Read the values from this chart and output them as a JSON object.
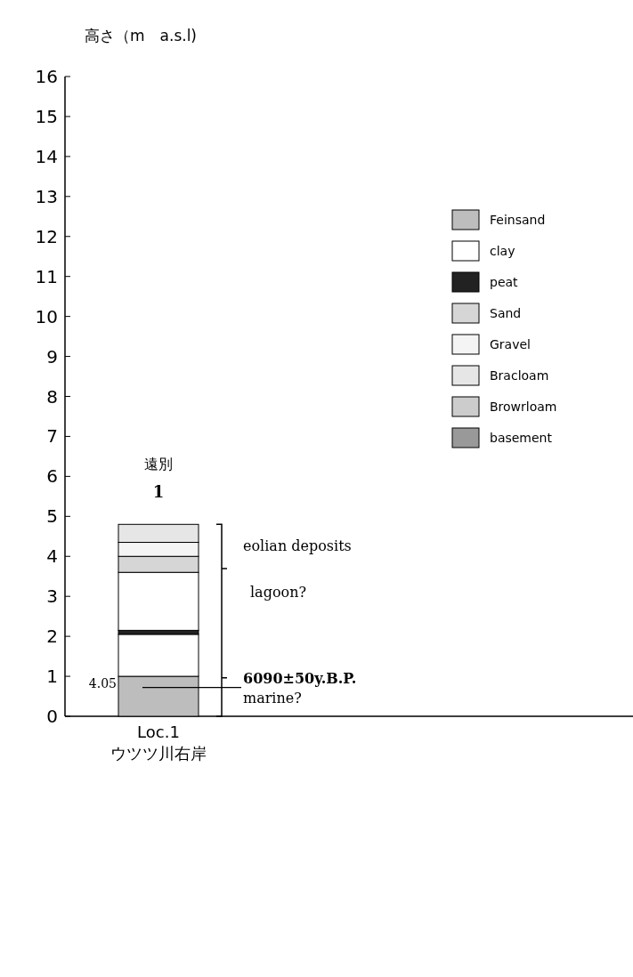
{
  "chart_data": {
    "type": "bar",
    "stacked": true,
    "ylabel": "高さ（m　a.s.l)",
    "categories": [
      "Loc.1\nウツツ川右岸"
    ],
    "series": [
      {
        "name": "Feinsand",
        "color": "#bdbdbd",
        "values": [
          1.0
        ]
      },
      {
        "name": "clay",
        "color": "#ffffff",
        "values": [
          1.05
        ]
      },
      {
        "name": "peat",
        "color": "#222222",
        "values": [
          0.1
        ]
      },
      {
        "color": "#ffffff",
        "values": [
          1.45
        ]
      },
      {
        "name": "Sand",
        "color": "#d6d6d6",
        "values": [
          0.4
        ]
      },
      {
        "name": "Gravel",
        "color": "#f4f4f4",
        "values": [
          0.35
        ]
      },
      {
        "name": "Bracloam",
        "color": "#e6e6e6",
        "values": [
          0.45
        ]
      },
      {
        "name": "Browrloam",
        "color": "#cccccc",
        "values": [
          null
        ]
      },
      {
        "name": "basement",
        "color": "#999999",
        "values": [
          null
        ]
      }
    ],
    "ylim": [
      0,
      16
    ],
    "yticks": [
      0,
      1,
      2,
      3,
      4,
      5,
      6,
      7,
      8,
      9,
      10,
      11,
      12,
      13,
      14,
      15,
      16
    ],
    "legend": "right",
    "annotations": [
      "遠別",
      "1",
      "eolian deposits",
      "lagoon?",
      "6090±50y.B.P.",
      "marine?",
      "4.05"
    ]
  }
}
